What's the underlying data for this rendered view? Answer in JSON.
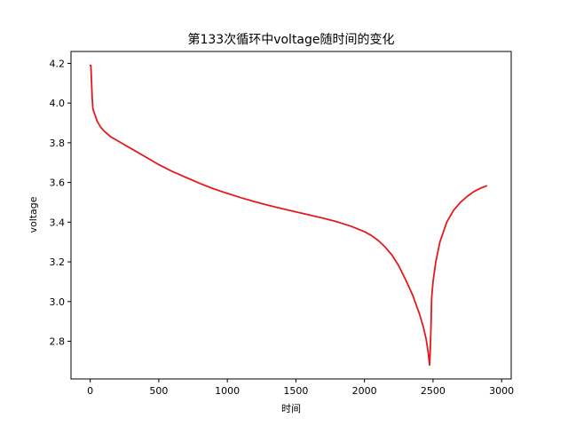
{
  "chart_data": {
    "type": "line",
    "title": "第133次循环中voltage随时间的变化",
    "xlabel": "时间",
    "ylabel": "voltage",
    "xlim": [
      -140,
      3070
    ],
    "ylim": [
      2.61,
      4.26
    ],
    "xticks": [
      0,
      500,
      1000,
      1500,
      2000,
      2500,
      3000
    ],
    "yticks": [
      2.8,
      3.0,
      3.2,
      3.4,
      3.6,
      3.8,
      4.0,
      4.2
    ],
    "xtick_labels": [
      "0",
      "500",
      "1000",
      "1500",
      "2000",
      "2500",
      "3000"
    ],
    "ytick_labels": [
      "2.8",
      "3.0",
      "3.2",
      "3.4",
      "3.6",
      "3.8",
      "4.0",
      "4.2"
    ],
    "grid": false,
    "series": [
      {
        "color": "#e41a1c",
        "x": [
          0,
          5,
          10,
          15,
          20,
          30,
          50,
          75,
          100,
          150,
          200,
          300,
          400,
          500,
          600,
          700,
          800,
          900,
          1000,
          1100,
          1200,
          1300,
          1400,
          1500,
          1600,
          1700,
          1800,
          1900,
          2000,
          2050,
          2100,
          2150,
          2200,
          2250,
          2300,
          2350,
          2400,
          2430,
          2450,
          2465,
          2475,
          2480,
          2485,
          2490,
          2500,
          2520,
          2550,
          2600,
          2650,
          2700,
          2750,
          2800,
          2850,
          2890
        ],
        "y": [
          4.19,
          4.19,
          4.1,
          4.02,
          3.97,
          3.95,
          3.91,
          3.88,
          3.86,
          3.83,
          3.81,
          3.77,
          3.73,
          3.69,
          3.655,
          3.625,
          3.595,
          3.568,
          3.545,
          3.523,
          3.503,
          3.485,
          3.468,
          3.452,
          3.436,
          3.42,
          3.402,
          3.38,
          3.352,
          3.333,
          3.308,
          3.275,
          3.235,
          3.18,
          3.11,
          3.035,
          2.94,
          2.87,
          2.81,
          2.74,
          2.68,
          2.76,
          2.87,
          3.02,
          3.1,
          3.2,
          3.3,
          3.4,
          3.46,
          3.5,
          3.53,
          3.555,
          3.572,
          3.583
        ]
      }
    ]
  }
}
